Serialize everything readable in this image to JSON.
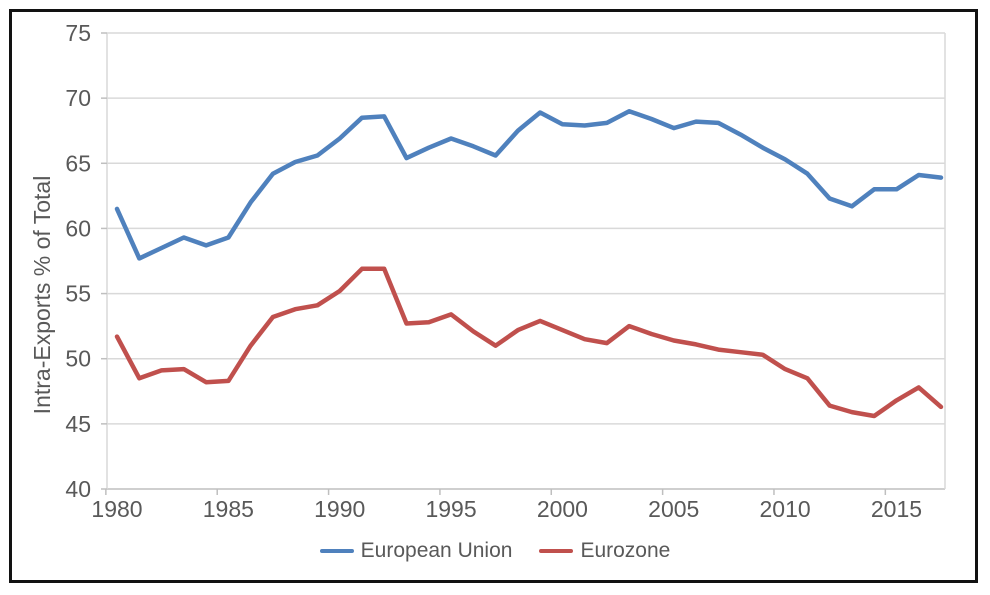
{
  "chart_data": {
    "type": "line",
    "title": "",
    "ylabel": "Intra-Exports % of Total",
    "xlabel": "",
    "ylim": [
      40,
      75
    ],
    "x_range": [
      1980,
      2017
    ],
    "yticks": [
      40,
      45,
      50,
      55,
      60,
      65,
      70,
      75
    ],
    "xticks": [
      1980,
      1985,
      1990,
      1995,
      2000,
      2005,
      2010,
      2015
    ],
    "grid": "horizontal",
    "legend_position": "bottom-center",
    "x": [
      1980,
      1981,
      1982,
      1983,
      1984,
      1985,
      1986,
      1987,
      1988,
      1989,
      1990,
      1991,
      1992,
      1993,
      1994,
      1995,
      1996,
      1997,
      1998,
      1999,
      2000,
      2001,
      2002,
      2003,
      2004,
      2005,
      2006,
      2007,
      2008,
      2009,
      2010,
      2011,
      2012,
      2013,
      2014,
      2015,
      2016,
      2017
    ],
    "series": [
      {
        "name": "European Union",
        "color": "#4f81bd",
        "values": [
          61.5,
          57.7,
          58.5,
          59.3,
          58.7,
          59.3,
          62.0,
          64.2,
          65.1,
          65.6,
          66.9,
          68.5,
          68.6,
          65.4,
          66.2,
          66.9,
          66.3,
          65.6,
          67.5,
          68.9,
          68.0,
          67.9,
          68.1,
          69.0,
          68.4,
          67.7,
          68.2,
          68.1,
          67.2,
          66.2,
          65.3,
          64.2,
          62.3,
          61.7,
          63.0,
          63.0,
          64.1,
          63.9
        ]
      },
      {
        "name": "Eurozone",
        "color": "#c0504d",
        "values": [
          51.7,
          48.5,
          49.1,
          49.2,
          48.2,
          48.3,
          51.0,
          53.2,
          53.8,
          54.1,
          55.2,
          56.9,
          56.9,
          52.7,
          52.8,
          53.4,
          52.1,
          51.0,
          52.2,
          52.9,
          52.2,
          51.5,
          51.2,
          52.5,
          51.9,
          51.4,
          51.1,
          50.7,
          50.5,
          50.3,
          49.2,
          48.5,
          46.4,
          45.9,
          45.6,
          46.8,
          47.8,
          46.3
        ]
      }
    ],
    "style": {
      "grid_color": "#d9d9d9",
      "axis_color": "#bfbfbf",
      "tick_color": "#bfbfbf",
      "text_color": "#595959",
      "figure_border_color": "#121212",
      "background": "#ffffff"
    }
  }
}
